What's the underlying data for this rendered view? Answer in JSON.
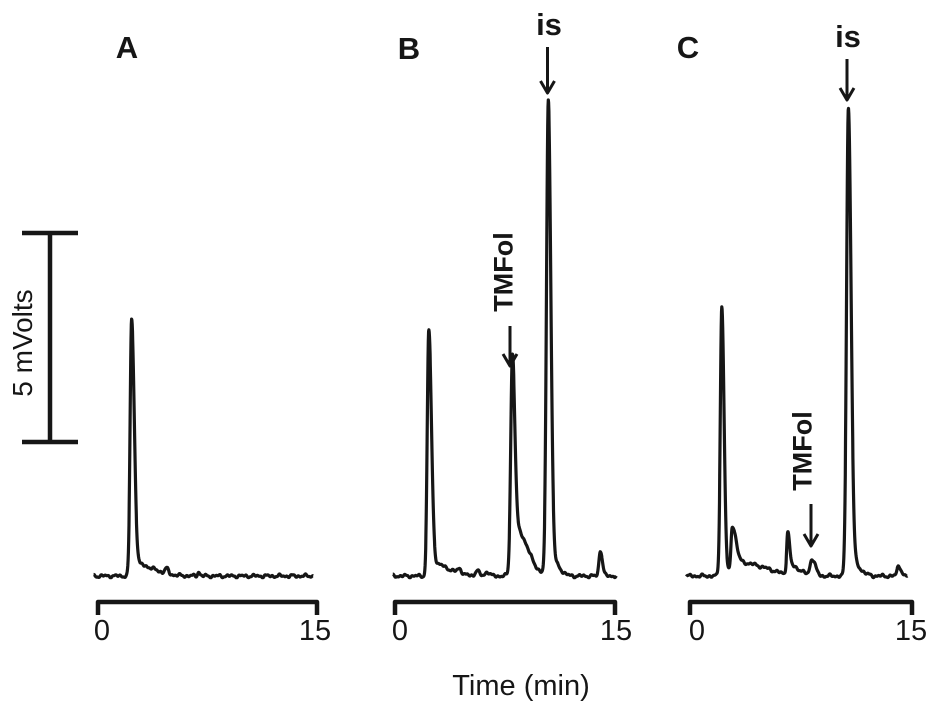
{
  "figure": {
    "type": "hplc-chromatograms",
    "background": "#ffffff",
    "ink_color": "#161616",
    "scale_bar": {
      "label": "5 mVolts",
      "value_mv": 5
    },
    "x_axis": {
      "title": "Time (min)",
      "ticks": [
        "0",
        "15"
      ],
      "range": [
        0,
        15
      ]
    }
  },
  "chart_data": [
    {
      "type": "line",
      "panel": "A",
      "title": "A",
      "xlabel": "Time (min)",
      "ylabel": "mVolts",
      "xlim": [
        0,
        15
      ],
      "scale_bar_mv": 5,
      "grid": false,
      "legend": false,
      "annotations": [],
      "peaks": [
        {
          "name": "unretained-peak",
          "t_min": 2.3,
          "height_mv": 6.05,
          "width_left_min": 0.1,
          "width_right_min": 0.18
        },
        {
          "name": "peak-tail",
          "t_min": 2.6,
          "height_mv": 0.28,
          "width_left_min": 0.2,
          "width_right_min": 1.2
        },
        {
          "name": "baseline-blip",
          "t_min": 4.7,
          "height_mv": 0.12,
          "width_left_min": 0.12,
          "width_right_min": 0.12
        },
        {
          "name": "baseline-blip",
          "t_min": 6.9,
          "height_mv": 0.1,
          "width_left_min": 0.08,
          "width_right_min": 0.08
        }
      ]
    },
    {
      "type": "line",
      "panel": "B",
      "title": "B",
      "xlabel": "Time (min)",
      "ylabel": "mVolts",
      "xlim": [
        0,
        15
      ],
      "scale_bar_mv": 5,
      "grid": false,
      "legend": false,
      "annotations": [
        {
          "text": "TMFol",
          "t_min": 8.0,
          "rotation_deg": -90
        },
        {
          "text": "is",
          "t_min": 10.45,
          "rotation_deg": 0
        }
      ],
      "peaks": [
        {
          "name": "unretained-peak",
          "t_min": 2.3,
          "height_mv": 5.8,
          "width_left_min": 0.1,
          "width_right_min": 0.18
        },
        {
          "name": "peak-tail",
          "t_min": 2.6,
          "height_mv": 0.3,
          "width_left_min": 0.2,
          "width_right_min": 1.0
        },
        {
          "name": "baseline-blip",
          "t_min": 4.4,
          "height_mv": 0.12,
          "width_left_min": 0.15,
          "width_right_min": 0.15
        },
        {
          "name": "baseline-blip",
          "t_min": 5.6,
          "height_mv": 0.14,
          "width_left_min": 0.12,
          "width_right_min": 0.12
        },
        {
          "name": "baseline-blip",
          "t_min": 6.3,
          "height_mv": 0.1,
          "width_left_min": 0.15,
          "width_right_min": 0.15
        },
        {
          "name": "TMFol-peak",
          "t_min": 8.0,
          "height_mv": 4.75,
          "width_left_min": 0.11,
          "width_right_min": 0.16
        },
        {
          "name": "TMFol-tail",
          "t_min": 8.3,
          "height_mv": 1.1,
          "width_left_min": 0.25,
          "width_right_min": 0.75
        },
        {
          "name": "is-peak",
          "t_min": 10.45,
          "height_mv": 11.3,
          "width_left_min": 0.12,
          "width_right_min": 0.17
        },
        {
          "name": "is-tail",
          "t_min": 10.75,
          "height_mv": 0.35,
          "width_left_min": 0.2,
          "width_right_min": 0.45
        },
        {
          "name": "late-minor-peak",
          "t_min": 14.0,
          "height_mv": 0.62,
          "width_left_min": 0.09,
          "width_right_min": 0.14
        }
      ]
    },
    {
      "type": "line",
      "panel": "C",
      "title": "C",
      "xlabel": "Time (min)",
      "ylabel": "mVolts",
      "xlim": [
        0,
        15
      ],
      "scale_bar_mv": 5,
      "grid": false,
      "legend": false,
      "annotations": [
        {
          "text": "TMFol",
          "t_min": 8.25,
          "rotation_deg": -90
        },
        {
          "text": "is",
          "t_min": 10.7,
          "rotation_deg": 0
        }
      ],
      "peaks": [
        {
          "name": "unretained-peak",
          "t_min": 2.15,
          "height_mv": 6.45,
          "width_left_min": 0.1,
          "width_right_min": 0.15
        },
        {
          "name": "shoulder-peak",
          "t_min": 2.85,
          "height_mv": 0.95,
          "width_left_min": 0.08,
          "width_right_min": 0.25
        },
        {
          "name": "peak-tail",
          "t_min": 3.1,
          "height_mv": 0.3,
          "width_left_min": 0.3,
          "width_right_min": 1.2
        },
        {
          "name": "broad-baseline",
          "t_min": 5.0,
          "height_mv": 0.12,
          "width_left_min": 1.0,
          "width_right_min": 1.0
        },
        {
          "name": "minor-peak",
          "t_min": 6.6,
          "height_mv": 0.92,
          "width_left_min": 0.07,
          "width_right_min": 0.12
        },
        {
          "name": "minor-peak-tail",
          "t_min": 6.85,
          "height_mv": 0.22,
          "width_left_min": 0.2,
          "width_right_min": 0.6
        },
        {
          "name": "TMFol-peak",
          "t_min": 8.25,
          "height_mv": 0.4,
          "width_left_min": 0.13,
          "width_right_min": 0.22
        },
        {
          "name": "is-peak",
          "t_min": 10.7,
          "height_mv": 11.1,
          "width_left_min": 0.12,
          "width_right_min": 0.18
        },
        {
          "name": "is-tail",
          "t_min": 11.0,
          "height_mv": 0.3,
          "width_left_min": 0.2,
          "width_right_min": 0.5
        },
        {
          "name": "late-minor-peak",
          "t_min": 14.1,
          "height_mv": 0.26,
          "width_left_min": 0.1,
          "width_right_min": 0.15
        }
      ]
    }
  ]
}
